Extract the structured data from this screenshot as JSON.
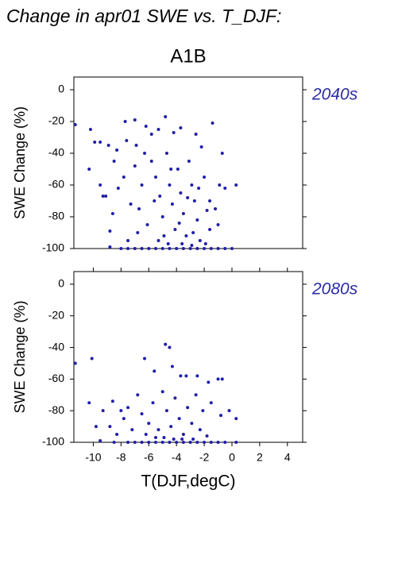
{
  "chart_data": [
    {
      "type": "scatter",
      "title": "Change in apr01 SWE vs. T_DJF:",
      "subtitle": "A1B",
      "label": "2040s",
      "ylabel": "SWE Change (%)",
      "color": "#1f1fa8",
      "xlim": [
        -11.4,
        5.1
      ],
      "ylim": [
        -100,
        8
      ],
      "yticks": [
        -100,
        -80,
        -60,
        -40,
        -20,
        0
      ],
      "x": [
        -11.3,
        -10.2,
        -9.9,
        -9.5,
        -8.9,
        -10.3,
        -9.5,
        -9.3,
        -9.1,
        -8.3,
        -8.5,
        -7.7,
        -7.0,
        -7.6,
        -6.9,
        -6.2,
        -5.8,
        -5.3,
        -4.8,
        -4.2,
        -3.7,
        -2.6,
        -2.2,
        -1.4,
        -0.7,
        0.3,
        -0.5,
        -0.9,
        -1.6,
        -7.8,
        -8.2,
        -8.6,
        -8.8,
        -7.3,
        -7.0,
        -6.5,
        -6.7,
        -6.1,
        -5.8,
        -5.5,
        -5.2,
        -5.0,
        -4.7,
        -4.5,
        -4.3,
        -4.1,
        -3.9,
        -3.7,
        -3.5,
        -3.3,
        -3.1,
        -2.9,
        -2.7,
        -2.5,
        -2.3,
        -2.0,
        -1.8,
        -1.6,
        -1.2,
        -1.0,
        -6.3,
        -5.6,
        -4.9,
        -4.4,
        -3.8,
        -3.2,
        -2.8,
        -2.4,
        -6.8,
        -7.5,
        -5.3,
        -4.6,
        -3.6,
        -2.9,
        -1.9,
        -8.8,
        -8,
        -7,
        -6,
        -5,
        -4,
        -3,
        -2,
        -1,
        0,
        -0.5,
        -1.5,
        -2.5,
        -3.5,
        -4.5,
        -5.5,
        -6.5,
        -7.5
      ],
      "y": [
        -22,
        -25,
        -33,
        -33,
        -35,
        -50,
        -60,
        -67,
        -67,
        -38,
        -45,
        -20,
        -19,
        -32,
        -35,
        -23,
        -28,
        -25,
        -17,
        -27,
        -24,
        -28,
        -36,
        -21,
        -40,
        -60,
        -62,
        -60,
        -70,
        -55,
        -62,
        -78,
        -89,
        -72,
        -48,
        -60,
        -75,
        -85,
        -45,
        -55,
        -67,
        -80,
        -40,
        -60,
        -72,
        -88,
        -50,
        -65,
        -78,
        -92,
        -45,
        -60,
        -70,
        -82,
        -95,
        -55,
        -76,
        -88,
        -75,
        -85,
        -40,
        -70,
        -92,
        -50,
        -84,
        -68,
        -90,
        -62,
        -90,
        -95,
        -95,
        -97,
        -97,
        -98,
        -97,
        -99,
        -100,
        -100,
        -100,
        -100,
        -100,
        -100,
        -100,
        -100,
        -100,
        -100,
        -100,
        -100,
        -100,
        -100,
        -100,
        -100,
        -100
      ]
    },
    {
      "type": "scatter",
      "label": "2080s",
      "ylabel": "SWE Change (%)",
      "xlabel": "T(DJF,degC)",
      "color": "#1f1fa8",
      "xlim": [
        -11.4,
        5.1
      ],
      "ylim": [
        -100,
        8
      ],
      "xticks": [
        -10,
        -8,
        -6,
        -4,
        -2,
        0,
        2,
        4
      ],
      "yticks": [
        -100,
        -80,
        -60,
        -40,
        -20,
        0
      ],
      "x": [
        -11.3,
        -10.1,
        -9.8,
        -10.3,
        -9.3,
        -9.5,
        -8.6,
        -8.0,
        -7.5,
        -6.3,
        -5.6,
        -4.8,
        -4.5,
        -4.3,
        -3.7,
        -3.3,
        -2.5,
        -1.7,
        -1.0,
        -0.7,
        -0.2,
        0.3,
        -0.8,
        -1.5,
        -2.1,
        -8.8,
        -8.3,
        -7.8,
        -7.2,
        -6.8,
        -6.5,
        -6.0,
        -5.7,
        -5.3,
        -5.0,
        -4.7,
        -4.4,
        -4.1,
        -3.8,
        -3.5,
        -3.2,
        -2.9,
        -2.6,
        -2.3,
        -6.2,
        -5.5,
        -4.9,
        -4.2,
        -3.6,
        -2.8,
        -1.8,
        -8.5,
        -7.5,
        -6.5,
        -5.5,
        -4.5,
        -3.5,
        -2.5,
        -1.5,
        -0.5,
        0.3,
        -7,
        -6,
        -5,
        -4,
        -3,
        -2,
        -1
      ],
      "y": [
        -50,
        -47,
        -90,
        -75,
        -80,
        -99,
        -74,
        -80,
        -78,
        -47,
        -55,
        -38,
        -40,
        -52,
        -58,
        -58,
        -58,
        -62,
        -60,
        -60,
        -80,
        -85,
        -83,
        -75,
        -80,
        -90,
        -95,
        -85,
        -92,
        -70,
        -82,
        -88,
        -75,
        -92,
        -68,
        -80,
        -90,
        -72,
        -85,
        -95,
        -78,
        -88,
        -70,
        -92,
        -95,
        -97,
        -97,
        -98,
        -98,
        -98,
        -96,
        -100,
        -100,
        -100,
        -100,
        -100,
        -100,
        -100,
        -100,
        -100,
        -100,
        -100,
        -100,
        -100,
        -100,
        -100,
        -100,
        -100
      ]
    }
  ]
}
